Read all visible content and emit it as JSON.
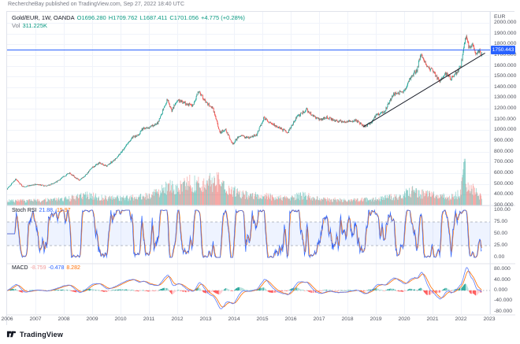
{
  "header": {
    "published_line": "RechercheBay published on TradingView.com, Sep 27, 2022 18:40 UTC"
  },
  "legend": {
    "symbol": "Gold/EUR, 1W, OANDA",
    "ohlc": {
      "open": "O1696.280",
      "high": "H1709.762",
      "low": "L1687.411",
      "close": "C1701.056",
      "change": "+4.775 (+0.28%)"
    },
    "volume_label": "Vol",
    "volume_value": "311.225K"
  },
  "price_axis": {
    "currency": "EUR",
    "ticks": [
      "2000.000",
      "1900.000",
      "1800.000",
      "1700.000",
      "1600.000",
      "1500.000",
      "1400.000",
      "1300.000",
      "1200.000",
      "1100.000",
      "1000.000",
      "900.000",
      "800.000",
      "700.000",
      "600.000",
      "500.000",
      "400.000",
      "300.000"
    ],
    "price_line_label": "1750.443"
  },
  "stoch_pane": {
    "label": "Stoch RSI",
    "k_value": "21.88,",
    "d_value": "15.97",
    "ticks": [
      "100.00",
      "75.00",
      "50.00",
      "25.00",
      "0.00"
    ]
  },
  "macd_pane": {
    "label": "MACD",
    "hist_value": "-8.759",
    "macd_value": "-0.478",
    "signal_value": "8.282",
    "ticks": [
      "80.000",
      "40.000",
      "0.000",
      "-40.000",
      "-80.000"
    ]
  },
  "time_axis": {
    "years": [
      "2006",
      "2007",
      "2008",
      "2009",
      "2010",
      "2011",
      "2012",
      "2013",
      "2014",
      "2015",
      "2016",
      "2017",
      "2018",
      "2019",
      "2020",
      "2021",
      "2022",
      "2023"
    ]
  },
  "footer": {
    "brand": "TradingView"
  },
  "colors": {
    "up": "#26A69A",
    "down": "#EF5350",
    "accent_blue": "#2962FF",
    "signal_orange": "#FF6D00",
    "teal_text": "#089981",
    "grid": "#f0f3fa",
    "separator": "#e0e3eb",
    "dashed": "#9aa0ae",
    "trend_line": "#1e222d",
    "hist_grow_pos": "#26A69A",
    "hist_fall_pos": "#B2DFDB",
    "hist_fall_neg": "#FF5252",
    "hist_grow_neg": "#FFCDD2"
  },
  "chart_data": {
    "type": "candlestick",
    "title": "Gold/EUR, 1W, OANDA",
    "x_range": [
      2006,
      2023
    ],
    "visible_price_range": [
      300,
      2000
    ],
    "ohlc_current": {
      "open": 1696.28,
      "high": 1709.762,
      "low": 1687.411,
      "close": 1701.056,
      "change": 4.775,
      "change_pct": 0.28
    },
    "volume_current": "311.225K",
    "horizontal_line_level": 1750.443,
    "trend_line": {
      "from": {
        "x": 2018.55,
        "y": 1030
      },
      "to": {
        "x": 2022.85,
        "y": 1718
      }
    },
    "price_anchor_points": [
      [
        2006.0,
        455
      ],
      [
        2006.3,
        545
      ],
      [
        2006.55,
        475
      ],
      [
        2007.0,
        495
      ],
      [
        2007.4,
        480
      ],
      [
        2007.75,
        520
      ],
      [
        2008.0,
        570
      ],
      [
        2008.2,
        605
      ],
      [
        2008.55,
        530
      ],
      [
        2008.75,
        580
      ],
      [
        2009.0,
        650
      ],
      [
        2009.25,
        695
      ],
      [
        2009.5,
        665
      ],
      [
        2009.8,
        730
      ],
      [
        2010.0,
        790
      ],
      [
        2010.4,
        930
      ],
      [
        2010.6,
        950
      ],
      [
        2010.8,
        1020
      ],
      [
        2011.0,
        1030
      ],
      [
        2011.3,
        1060
      ],
      [
        2011.65,
        1290
      ],
      [
        2011.8,
        1180
      ],
      [
        2012.0,
        1280
      ],
      [
        2012.3,
        1250
      ],
      [
        2012.55,
        1230
      ],
      [
        2012.75,
        1370
      ],
      [
        2013.0,
        1260
      ],
      [
        2013.25,
        1210
      ],
      [
        2013.5,
        980
      ],
      [
        2013.7,
        1010
      ],
      [
        2013.95,
        870
      ],
      [
        2014.2,
        950
      ],
      [
        2014.5,
        930
      ],
      [
        2014.8,
        960
      ],
      [
        2015.05,
        1115
      ],
      [
        2015.35,
        1060
      ],
      [
        2015.6,
        1020
      ],
      [
        2015.9,
        980
      ],
      [
        2016.2,
        1120
      ],
      [
        2016.55,
        1195
      ],
      [
        2016.8,
        1130
      ],
      [
        2017.0,
        1100
      ],
      [
        2017.3,
        1120
      ],
      [
        2017.6,
        1085
      ],
      [
        2017.95,
        1080
      ],
      [
        2018.3,
        1090
      ],
      [
        2018.6,
        1035
      ],
      [
        2018.85,
        1070
      ],
      [
        2019.0,
        1140
      ],
      [
        2019.3,
        1170
      ],
      [
        2019.6,
        1330
      ],
      [
        2019.8,
        1350
      ],
      [
        2020.0,
        1360
      ],
      [
        2020.2,
        1480
      ],
      [
        2020.45,
        1560
      ],
      [
        2020.6,
        1720
      ],
      [
        2020.8,
        1600
      ],
      [
        2021.0,
        1550
      ],
      [
        2021.25,
        1460
      ],
      [
        2021.45,
        1530
      ],
      [
        2021.65,
        1480
      ],
      [
        2021.85,
        1540
      ],
      [
        2022.0,
        1600
      ],
      [
        2022.17,
        1875
      ],
      [
        2022.3,
        1760
      ],
      [
        2022.42,
        1790
      ],
      [
        2022.55,
        1700
      ],
      [
        2022.63,
        1745
      ],
      [
        2022.74,
        1701
      ]
    ],
    "volume_anchor_points": [
      [
        2006.0,
        0.09
      ],
      [
        2007.0,
        0.1
      ],
      [
        2008.0,
        0.13
      ],
      [
        2008.8,
        0.22
      ],
      [
        2009.5,
        0.16
      ],
      [
        2010.0,
        0.15
      ],
      [
        2011.0,
        0.2
      ],
      [
        2011.7,
        0.42
      ],
      [
        2012.0,
        0.35
      ],
      [
        2012.4,
        0.5
      ],
      [
        2012.9,
        0.42
      ],
      [
        2013.3,
        0.55
      ],
      [
        2013.6,
        0.48
      ],
      [
        2014.0,
        0.3
      ],
      [
        2014.5,
        0.22
      ],
      [
        2015.0,
        0.2
      ],
      [
        2015.8,
        0.16
      ],
      [
        2016.5,
        0.22
      ],
      [
        2017.0,
        0.13
      ],
      [
        2018.0,
        0.11
      ],
      [
        2019.0,
        0.14
      ],
      [
        2019.8,
        0.2
      ],
      [
        2020.2,
        0.32
      ],
      [
        2020.6,
        0.25
      ],
      [
        2021.0,
        0.22
      ],
      [
        2021.5,
        0.18
      ],
      [
        2022.0,
        0.25
      ],
      [
        2022.13,
        1.0
      ],
      [
        2022.2,
        0.55
      ],
      [
        2022.35,
        0.38
      ],
      [
        2022.55,
        0.3
      ],
      [
        2022.74,
        0.16
      ]
    ],
    "indicators": {
      "stoch_rsi": {
        "k": 21.88,
        "d": 15.97,
        "range": [
          0,
          100
        ],
        "band_levels": [
          25,
          75
        ]
      },
      "macd": {
        "histogram": -8.759,
        "macd": -0.478,
        "signal": 8.282,
        "axis_range": [
          -80,
          80
        ]
      }
    },
    "time_axis_years": [
      2006,
      2007,
      2008,
      2009,
      2010,
      2011,
      2012,
      2013,
      2014,
      2015,
      2016,
      2017,
      2018,
      2019,
      2020,
      2021,
      2022,
      2023
    ]
  }
}
